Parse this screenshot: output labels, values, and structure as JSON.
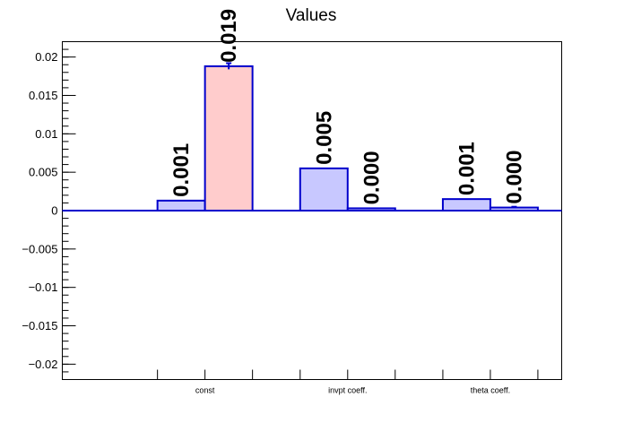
{
  "chart_data": {
    "type": "bar",
    "title": "Values",
    "categories": [
      "const",
      "invpt coeff.",
      "theta coeff."
    ],
    "series": [
      {
        "values": [
          0.0013,
          0.0055,
          0.0015
        ],
        "labels": [
          "0.001",
          "0.005",
          "0.001"
        ],
        "errors": [
          0.0,
          0.0,
          0.0
        ],
        "fill": "#c8c8ff",
        "stroke": "#0000cc"
      },
      {
        "values": [
          0.0188,
          0.0003,
          0.0004
        ],
        "labels": [
          "0.019",
          "0.000",
          "0.000"
        ],
        "errors": [
          0.0004,
          0.0,
          0.0001
        ],
        "fill": "#ffcccc",
        "fill_by_point": [
          "#ffcccc",
          "#c8c8ff",
          "#c8c8ff"
        ],
        "stroke": "#0000cc"
      }
    ],
    "ylim": [
      -0.022,
      0.022
    ],
    "yticks": [
      -0.02,
      -0.015,
      -0.01,
      -0.005,
      0,
      0.005,
      0.01,
      0.015,
      0.02
    ],
    "ytick_labels": [
      "−0.02",
      "−0.015",
      "−0.01",
      "−0.005",
      "0",
      "0.005",
      "0.01",
      "0.015",
      "0.02"
    ],
    "xlabel": "",
    "ylabel": "",
    "grid": false,
    "legend": "none",
    "zero_line_color": "#0000cc"
  }
}
